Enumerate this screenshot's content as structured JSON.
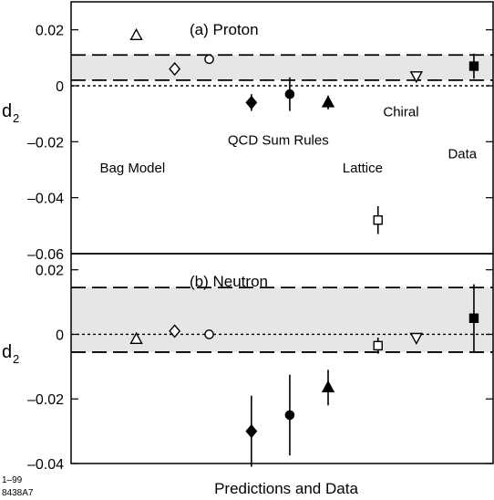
{
  "corner_label": {
    "line1": "1–99",
    "line2": "8438A7"
  },
  "xlabel": "Predictions and Data",
  "chart_data": [
    {
      "type": "scatter",
      "panel_title": "(a)  Proton",
      "ylabel": {
        "base": "d",
        "sub": "2"
      },
      "ylim": [
        -0.06,
        0.03
      ],
      "yticks": [
        0.02,
        0,
        -0.02,
        -0.04,
        -0.06
      ],
      "ytick_labels": [
        "0.02",
        "0",
        "–0.02",
        "–0.04",
        "–0.06"
      ],
      "x_index_range": [
        0,
        11
      ],
      "data_band": [
        0.002,
        0.011
      ],
      "zero_line": 0,
      "category_labels": [
        {
          "text": "Bag Model",
          "x": 1.6,
          "y": -0.031
        },
        {
          "text": "QCD Sum Rules",
          "x": 5.4,
          "y": -0.021
        },
        {
          "text": "Chiral",
          "x": 8.6,
          "y": -0.011
        },
        {
          "text": "Lattice",
          "x": 7.6,
          "y": -0.031
        },
        {
          "text": "Data",
          "x": 10.2,
          "y": -0.026
        }
      ],
      "points": [
        {
          "x": 1.7,
          "y": 0.018,
          "marker": "triangle-up",
          "filled": false
        },
        {
          "x": 2.7,
          "y": 0.006,
          "marker": "diamond",
          "filled": false
        },
        {
          "x": 3.6,
          "y": 0.0095,
          "marker": "circle",
          "filled": false
        },
        {
          "x": 4.7,
          "y": -0.006,
          "err": 0.003,
          "marker": "diamond",
          "filled": true
        },
        {
          "x": 5.7,
          "y": -0.003,
          "err": 0.006,
          "marker": "circle",
          "filled": true
        },
        {
          "x": 6.7,
          "y": -0.006,
          "err": 0.0025,
          "marker": "triangle-up",
          "filled": true
        },
        {
          "x": 8.0,
          "y": -0.048,
          "err": 0.005,
          "marker": "square",
          "filled": false
        },
        {
          "x": 9.0,
          "y": 0.0035,
          "marker": "triangle-down",
          "filled": false
        },
        {
          "x": 10.5,
          "y": 0.007,
          "err": 0.0045,
          "marker": "square",
          "filled": true
        }
      ]
    },
    {
      "type": "scatter",
      "panel_title": "(b)  Neutron",
      "ylabel": {
        "base": "d",
        "sub": "2"
      },
      "ylim": [
        -0.04,
        0.025
      ],
      "yticks": [
        0.02,
        0,
        -0.02,
        -0.04
      ],
      "ytick_labels": [
        "0.02",
        "0",
        "–0.02",
        "–0.04"
      ],
      "x_index_range": [
        0,
        11
      ],
      "data_band": [
        -0.0055,
        0.0145
      ],
      "zero_line": 0,
      "category_labels": [],
      "points": [
        {
          "x": 1.7,
          "y": -0.0015,
          "marker": "triangle-up",
          "filled": false
        },
        {
          "x": 2.7,
          "y": 0.001,
          "marker": "diamond",
          "filled": false
        },
        {
          "x": 3.6,
          "y": 0.0,
          "marker": "circle",
          "filled": false
        },
        {
          "x": 4.7,
          "y": -0.03,
          "err": 0.011,
          "marker": "diamond",
          "filled": true
        },
        {
          "x": 5.7,
          "y": -0.025,
          "err": 0.0125,
          "marker": "circle",
          "filled": true
        },
        {
          "x": 6.7,
          "y": -0.0165,
          "err": 0.0055,
          "marker": "triangle-up",
          "filled": true
        },
        {
          "x": 8.0,
          "y": -0.0035,
          "err": 0.0025,
          "marker": "square",
          "filled": false
        },
        {
          "x": 9.0,
          "y": -0.001,
          "marker": "triangle-down",
          "filled": false
        },
        {
          "x": 10.5,
          "y": 0.005,
          "err": 0.0105,
          "marker": "square",
          "filled": true
        }
      ]
    }
  ]
}
